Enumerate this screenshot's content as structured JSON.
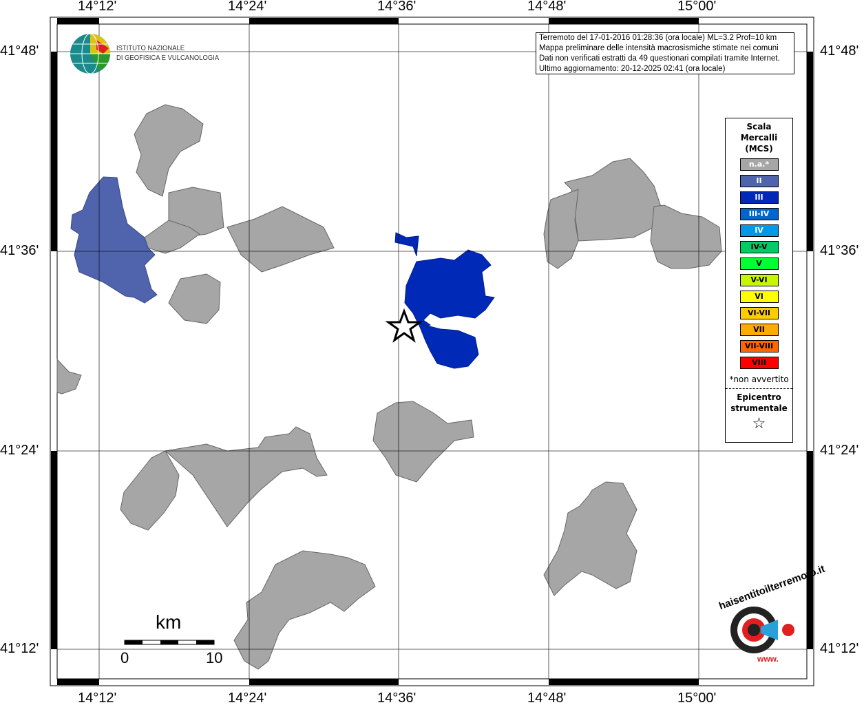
{
  "map": {
    "lon_labels": [
      "14°12'",
      "14°24'",
      "14°36'",
      "14°48'",
      "15°00'"
    ],
    "lat_labels": [
      "41°48'",
      "41°36'",
      "41°24'",
      "41°12'"
    ],
    "land_color": "#a6a6a6",
    "regions": [
      {
        "intensity": "II",
        "color": "#4f64ad"
      },
      {
        "intensity": "III",
        "color": "#0029b8"
      }
    ]
  },
  "logo": {
    "line1": "ISTITUTO NAZIONALE",
    "line2": "DI GEOFISICA E VULCANOLOGIA"
  },
  "info": {
    "lines": [
      "Terremoto del 17-01-2016 01:28:36 (ora locale) ML=3.2 Prof=10 km",
      "Mappa preliminare delle intensità macrosismiche stimate nei comuni",
      "Dati non verificati estratti da 49 questionari compilati tramite Internet.",
      "Ultimo aggiornamento: 20-12-2025 02:41 (ora locale)"
    ]
  },
  "legend": {
    "title": [
      "Scala",
      "Mercalli",
      "(MCS)"
    ],
    "items": [
      {
        "label": "n.a.*",
        "color": "#a6a6a6",
        "text": "#ffffff"
      },
      {
        "label": "II",
        "color": "#4f64ad",
        "text": "#ffffff"
      },
      {
        "label": "III",
        "color": "#0029b8",
        "text": "#ffffff"
      },
      {
        "label": "III-IV",
        "color": "#0066cc",
        "text": "#ffffff"
      },
      {
        "label": "IV",
        "color": "#0099e6",
        "text": "#ffffff"
      },
      {
        "label": "IV-V",
        "color": "#00cc66",
        "text": "#000000"
      },
      {
        "label": "V",
        "color": "#00ff33",
        "text": "#000000"
      },
      {
        "label": "V-VI",
        "color": "#c8f500",
        "text": "#000000"
      },
      {
        "label": "VI",
        "color": "#ffff00",
        "text": "#000000"
      },
      {
        "label": "VI-VII",
        "color": "#ffcc00",
        "text": "#000000"
      },
      {
        "label": "VII",
        "color": "#ffaa00",
        "text": "#000000"
      },
      {
        "label": "VII-VIII",
        "color": "#ff6600",
        "text": "#000000"
      },
      {
        "label": "VIII",
        "color": "#ff0000",
        "text": "#000000"
      }
    ],
    "note": "*non avvertito",
    "epicenter": [
      "Epicentro",
      "strumentale"
    ],
    "star": "☆"
  },
  "scale": {
    "unit": "km",
    "min": "0",
    "max": "10"
  },
  "brand": {
    "text": "haisentitoilterremoto.it",
    "url_text": "www."
  }
}
